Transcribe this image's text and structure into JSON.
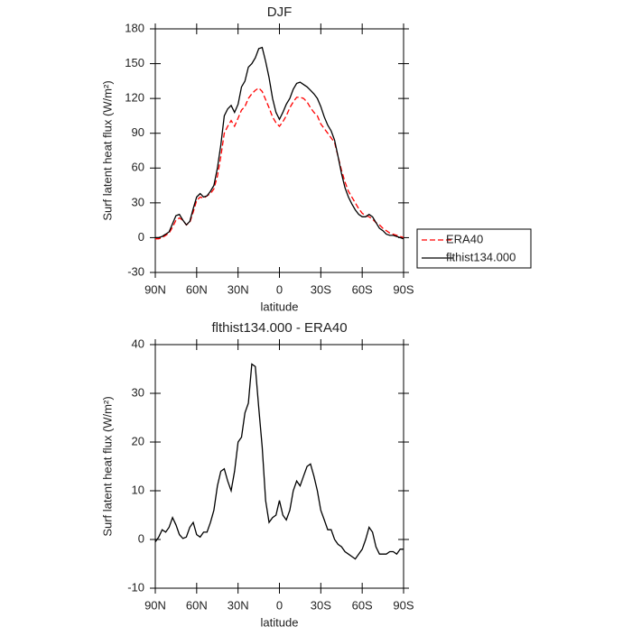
{
  "chart_data": [
    {
      "type": "line",
      "title": "DJF",
      "xlabel": "latitude",
      "ylabel": "Surf latent heat flux (W/m²)",
      "x": [
        90,
        87.5,
        85,
        82.5,
        80,
        77.5,
        75,
        72.5,
        70,
        67.5,
        65,
        62.5,
        60,
        57.5,
        55,
        52.5,
        50,
        47.5,
        45,
        42.5,
        40,
        37.5,
        35,
        32.5,
        30,
        27.5,
        25,
        22.5,
        20,
        17.5,
        15,
        12.5,
        10,
        7.5,
        5,
        2.5,
        0,
        -2.5,
        -5,
        -7.5,
        -10,
        -12.5,
        -15,
        -17.5,
        -20,
        -22.5,
        -25,
        -27.5,
        -30,
        -32.5,
        -35,
        -37.5,
        -40,
        -42.5,
        -45,
        -47.5,
        -50,
        -52.5,
        -55,
        -57.5,
        -60,
        -62.5,
        -65,
        -67.5,
        -70,
        -72.5,
        -75,
        -77.5,
        -80,
        -82.5,
        -85,
        -87.5,
        -90
      ],
      "xlim": [
        90,
        -90
      ],
      "xticks": [
        {
          "value": 90,
          "label": "90N"
        },
        {
          "value": 60,
          "label": "60N"
        },
        {
          "value": 30,
          "label": "30N"
        },
        0,
        {
          "value": -30,
          "label": "30S"
        },
        {
          "value": -60,
          "label": "60S"
        },
        {
          "value": -90,
          "label": "90S"
        }
      ],
      "ylim": [
        -30,
        180
      ],
      "yticks": [
        -30,
        0,
        30,
        60,
        90,
        120,
        150,
        180
      ],
      "legend": "right",
      "series": [
        {
          "name": "ERA40",
          "color": "#ff0000",
          "linestyle": "dashed",
          "values": [
            -1,
            -1,
            0,
            2,
            4,
            9,
            15,
            17,
            15,
            11,
            13,
            22,
            32,
            35,
            34,
            36,
            38,
            42,
            53,
            70,
            90,
            96,
            101,
            96,
            103,
            110,
            113,
            120,
            124,
            127,
            129,
            126,
            119,
            112,
            104,
            99,
            96,
            100,
            105,
            112,
            117,
            121,
            121,
            120,
            117,
            112,
            108,
            105,
            98,
            94,
            90,
            86,
            82,
            70,
            58,
            48,
            40,
            35,
            30,
            25,
            21,
            19,
            18,
            16,
            13,
            11,
            8,
            6,
            4,
            3,
            2,
            1,
            0
          ]
        },
        {
          "name": "flthist134.000",
          "color": "#000000",
          "linestyle": "solid",
          "values": [
            0,
            0,
            1,
            3,
            5,
            12,
            19,
            20,
            15,
            11,
            14,
            25,
            35,
            38,
            35,
            36,
            40,
            45,
            60,
            80,
            105,
            111,
            114,
            108,
            115,
            130,
            135,
            147,
            150,
            155,
            163,
            164,
            152,
            138,
            120,
            108,
            102,
            108,
            115,
            120,
            128,
            133,
            134,
            132,
            130,
            127,
            124,
            120,
            113,
            104,
            97,
            92,
            84,
            70,
            55,
            43,
            35,
            29,
            24,
            20,
            18,
            18,
            20,
            18,
            13,
            8,
            6,
            3,
            2,
            2,
            1,
            0,
            -1
          ]
        }
      ]
    },
    {
      "type": "line",
      "title": "flthist134.000 - ERA40",
      "xlabel": "latitude",
      "ylabel": "Surf latent heat flux (W/m²)",
      "x": [
        90,
        87.5,
        85,
        82.5,
        80,
        77.5,
        75,
        72.5,
        70,
        67.5,
        65,
        62.5,
        60,
        57.5,
        55,
        52.5,
        50,
        47.5,
        45,
        42.5,
        40,
        37.5,
        35,
        32.5,
        30,
        27.5,
        25,
        22.5,
        20,
        17.5,
        15,
        12.5,
        10,
        7.5,
        5,
        2.5,
        0,
        -2.5,
        -5,
        -7.5,
        -10,
        -12.5,
        -15,
        -17.5,
        -20,
        -22.5,
        -25,
        -27.5,
        -30,
        -32.5,
        -35,
        -37.5,
        -40,
        -42.5,
        -45,
        -47.5,
        -50,
        -52.5,
        -55,
        -57.5,
        -60,
        -62.5,
        -65,
        -67.5,
        -70,
        -72.5,
        -75,
        -77.5,
        -80,
        -82.5,
        -85,
        -87.5,
        -90
      ],
      "xlim": [
        90,
        -90
      ],
      "xticks": [
        {
          "value": 90,
          "label": "90N"
        },
        {
          "value": 60,
          "label": "60N"
        },
        {
          "value": 30,
          "label": "30N"
        },
        0,
        {
          "value": -30,
          "label": "30S"
        },
        {
          "value": -60,
          "label": "60S"
        },
        {
          "value": -90,
          "label": "90S"
        }
      ],
      "ylim": [
        -10,
        40
      ],
      "yticks": [
        -10,
        0,
        10,
        20,
        30,
        40
      ],
      "series": [
        {
          "color": "#000000",
          "linestyle": "solid",
          "values": [
            -0.5,
            0.5,
            2,
            1.5,
            2.5,
            4.5,
            3,
            1,
            0.2,
            0.5,
            2.5,
            3.5,
            1,
            0.5,
            1.5,
            1.5,
            3.5,
            6,
            11,
            14,
            14.5,
            12,
            10,
            14,
            20,
            21,
            26,
            28,
            36,
            35.5,
            27,
            19,
            8,
            3.5,
            4.5,
            5,
            8,
            5,
            4,
            6,
            10,
            12,
            11,
            13,
            15,
            15.5,
            13,
            10,
            6,
            4,
            2,
            2,
            0,
            -1,
            -1.5,
            -2.5,
            -3,
            -3.5,
            -4,
            -3,
            -2,
            0,
            2.5,
            1.5,
            -1.5,
            -3,
            -3,
            -3,
            -2.5,
            -2.5,
            -3,
            -2,
            -2
          ]
        }
      ]
    }
  ]
}
